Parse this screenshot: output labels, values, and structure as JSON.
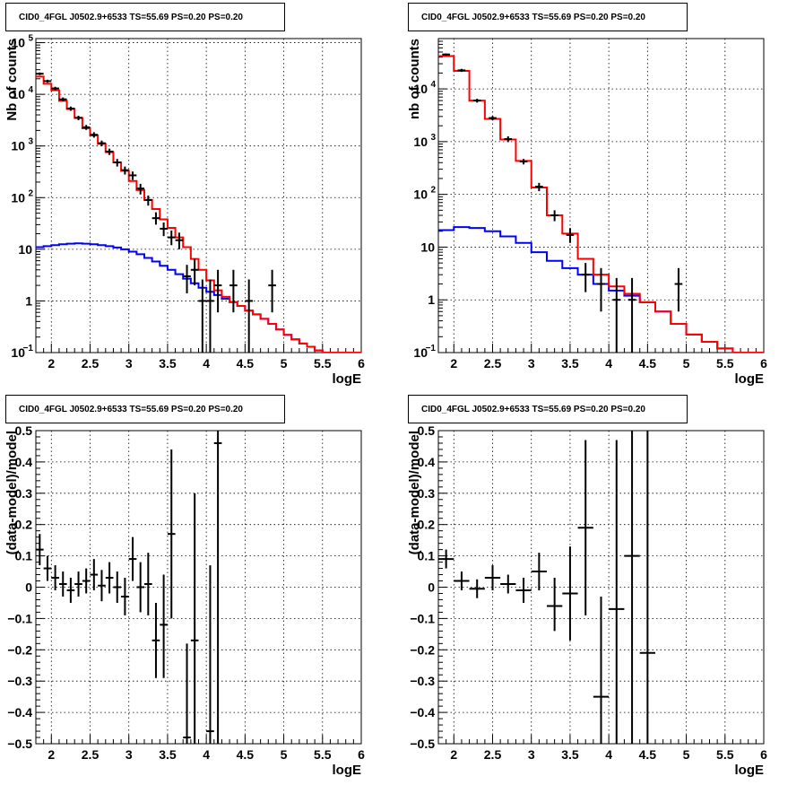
{
  "colors": {
    "data": "#000000",
    "total_model": "#ff0000",
    "background_model": "#0000ff",
    "grid": "#000000"
  },
  "chart_data": [
    {
      "type": "line",
      "subtype": "histogram-log",
      "title": "CID0_4FGL J0502.9+6533 TS=55.69 PS=0.20 PS=0.20",
      "xlabel": "logE",
      "ylabel": "Nb of counts",
      "xlim": [
        1.8,
        6.0
      ],
      "ylim": [
        0.1,
        120000
      ],
      "log_y": true,
      "grid": true,
      "x_ticks": [
        "2",
        "2.5",
        "3",
        "3.5",
        "4",
        "4.5",
        "5",
        "5.5",
        "6"
      ],
      "y_ticks": [
        {
          "v": 0.1,
          "m": "10",
          "e": "−1"
        },
        {
          "v": 1,
          "m": "1",
          "e": ""
        },
        {
          "v": 10,
          "m": "10",
          "e": ""
        },
        {
          "v": 100,
          "m": "10",
          "e": "2"
        },
        {
          "v": 1000,
          "m": "10",
          "e": "3"
        },
        {
          "v": 10000,
          "m": "10",
          "e": "4"
        },
        {
          "v": 100000,
          "m": "10",
          "e": "5"
        }
      ],
      "bin_edges": [
        1.8,
        1.9,
        2.0,
        2.1,
        2.2,
        2.3,
        2.4,
        2.5,
        2.6,
        2.7,
        2.8,
        2.9,
        3.0,
        3.1,
        3.2,
        3.3,
        3.4,
        3.5,
        3.6,
        3.7,
        3.8,
        3.9,
        4.0,
        4.1,
        4.2,
        4.3,
        4.4,
        4.5,
        4.6,
        4.7,
        4.8,
        4.9,
        5.0,
        5.1,
        5.2,
        5.3,
        5.4,
        5.5,
        5.6,
        5.7,
        5.8,
        5.9,
        6.0
      ],
      "series": [
        {
          "name": "total_model",
          "values": [
            22000,
            16000,
            12000,
            7500,
            5200,
            3500,
            2200,
            1600,
            1100,
            760,
            480,
            330,
            210,
            140,
            90,
            60,
            38,
            26,
            17,
            11,
            6.5,
            4,
            2.5,
            1.6,
            1.2,
            0.95,
            0.8,
            0.65,
            0.55,
            0.45,
            0.36,
            0.28,
            0.22,
            0.18,
            0.15,
            0.13,
            0.11,
            0.1,
            0.1,
            0.1,
            0.1,
            0.1
          ]
        },
        {
          "name": "background_model",
          "values": [
            11,
            11.5,
            12,
            12.5,
            12.8,
            13,
            12.8,
            12.5,
            12,
            11.5,
            10.8,
            10,
            9,
            8,
            6.8,
            5.8,
            4.8,
            4,
            3.3,
            2.7,
            2.2,
            1.8,
            1.5,
            1.3,
            1.1,
            0.95,
            0.8,
            0.65,
            0.55,
            0.45,
            0.36,
            0.28,
            0.22,
            0.18,
            0.15,
            0.13,
            0.11,
            0.1,
            0.1,
            0.1,
            0.1,
            0.1
          ]
        }
      ],
      "data_points": [
        {
          "x": 1.85,
          "y": 25000,
          "lo": 23500,
          "hi": 26500
        },
        {
          "x": 1.95,
          "y": 18000,
          "lo": 16800,
          "hi": 19200
        },
        {
          "x": 2.05,
          "y": 13000,
          "lo": 12000,
          "hi": 14000
        },
        {
          "x": 2.15,
          "y": 8000,
          "lo": 7300,
          "hi": 8700
        },
        {
          "x": 2.25,
          "y": 5300,
          "lo": 4800,
          "hi": 5800
        },
        {
          "x": 2.35,
          "y": 3500,
          "lo": 3150,
          "hi": 3850
        },
        {
          "x": 2.45,
          "y": 2300,
          "lo": 2050,
          "hi": 2550
        },
        {
          "x": 2.55,
          "y": 1650,
          "lo": 1450,
          "hi": 1850
        },
        {
          "x": 2.65,
          "y": 1130,
          "lo": 990,
          "hi": 1270
        },
        {
          "x": 2.75,
          "y": 780,
          "lo": 670,
          "hi": 890
        },
        {
          "x": 2.85,
          "y": 480,
          "lo": 400,
          "hi": 560
        },
        {
          "x": 2.95,
          "y": 340,
          "lo": 280,
          "hi": 400
        },
        {
          "x": 3.05,
          "y": 270,
          "lo": 220,
          "hi": 320
        },
        {
          "x": 3.15,
          "y": 150,
          "lo": 115,
          "hi": 185
        },
        {
          "x": 3.25,
          "y": 90,
          "lo": 70,
          "hi": 110
        },
        {
          "x": 3.35,
          "y": 40,
          "lo": 30,
          "hi": 52
        },
        {
          "x": 3.45,
          "y": 25,
          "lo": 18,
          "hi": 33
        },
        {
          "x": 3.55,
          "y": 17,
          "lo": 12,
          "hi": 23
        },
        {
          "x": 3.65,
          "y": 15,
          "lo": 10,
          "hi": 21
        },
        {
          "x": 3.75,
          "y": 3,
          "lo": 1.4,
          "hi": 5
        },
        {
          "x": 3.85,
          "y": 4,
          "lo": 2,
          "hi": 6.5
        },
        {
          "x": 3.95,
          "y": 1,
          "lo": 0.1,
          "hi": 2.6
        },
        {
          "x": 4.05,
          "y": 1,
          "lo": 0.1,
          "hi": 2.6
        },
        {
          "x": 4.15,
          "y": 2,
          "lo": 0.6,
          "hi": 4
        },
        {
          "x": 4.35,
          "y": 2,
          "lo": 0.6,
          "hi": 4
        },
        {
          "x": 4.55,
          "y": 1,
          "lo": 0.1,
          "hi": 2.6
        },
        {
          "x": 4.85,
          "y": 2,
          "lo": 0.6,
          "hi": 4
        }
      ]
    },
    {
      "type": "line",
      "subtype": "histogram-log",
      "title": "CID0_4FGL J0502.9+6533 TS=55.69 PS=0.20 PS=0.20",
      "xlabel": "logE",
      "ylabel": "nb of counts",
      "xlim": [
        1.8,
        6.0
      ],
      "ylim": [
        0.1,
        90000
      ],
      "log_y": true,
      "grid": true,
      "x_ticks": [
        "2",
        "2.5",
        "3",
        "3.5",
        "4",
        "4.5",
        "5",
        "5.5",
        "6"
      ],
      "y_ticks": [
        {
          "v": 0.1,
          "m": "10",
          "e": "−1"
        },
        {
          "v": 1,
          "m": "1",
          "e": ""
        },
        {
          "v": 10,
          "m": "10",
          "e": ""
        },
        {
          "v": 100,
          "m": "10",
          "e": "2"
        },
        {
          "v": 1000,
          "m": "10",
          "e": "3"
        },
        {
          "v": 10000,
          "m": "10",
          "e": "4"
        }
      ],
      "bin_edges": [
        1.8,
        2.0,
        2.2,
        2.4,
        2.6,
        2.8,
        3.0,
        3.2,
        3.4,
        3.6,
        3.8,
        4.0,
        4.2,
        4.4,
        4.6,
        4.8,
        5.0,
        5.2,
        5.4,
        5.6,
        5.8,
        6.0
      ],
      "series": [
        {
          "name": "total_model",
          "values": [
            42000,
            22000,
            6000,
            2700,
            1100,
            430,
            135,
            40,
            18,
            6,
            3,
            1.8,
            1.3,
            0.9,
            0.6,
            0.35,
            0.22,
            0.16,
            0.12,
            0.1,
            0.1
          ]
        },
        {
          "name": "background_model",
          "values": [
            21,
            24,
            23,
            20,
            16,
            12,
            8,
            5.5,
            4,
            3,
            2,
            1.5,
            1.2,
            0.9,
            0.6,
            0.35,
            0.22,
            0.16,
            0.12,
            0.1,
            0.1
          ]
        }
      ],
      "data_points": [
        {
          "x": 1.9,
          "y": 45000,
          "lo": 43000,
          "hi": 47000
        },
        {
          "x": 2.1,
          "y": 22500,
          "lo": 21000,
          "hi": 24000
        },
        {
          "x": 2.3,
          "y": 6000,
          "lo": 5500,
          "hi": 6500
        },
        {
          "x": 2.5,
          "y": 2800,
          "lo": 2550,
          "hi": 3050
        },
        {
          "x": 2.7,
          "y": 1120,
          "lo": 980,
          "hi": 1260
        },
        {
          "x": 2.9,
          "y": 420,
          "lo": 370,
          "hi": 470
        },
        {
          "x": 3.1,
          "y": 140,
          "lo": 115,
          "hi": 165
        },
        {
          "x": 3.3,
          "y": 40,
          "lo": 31,
          "hi": 50
        },
        {
          "x": 3.5,
          "y": 17,
          "lo": 12,
          "hi": 23
        },
        {
          "x": 3.7,
          "y": 3,
          "lo": 1.4,
          "hi": 5
        },
        {
          "x": 3.9,
          "y": 2,
          "lo": 0.6,
          "hi": 4
        },
        {
          "x": 4.1,
          "y": 1,
          "lo": 0.1,
          "hi": 2.6
        },
        {
          "x": 4.3,
          "y": 1,
          "lo": 0.1,
          "hi": 2.6
        },
        {
          "x": 4.9,
          "y": 2,
          "lo": 0.6,
          "hi": 4
        }
      ]
    },
    {
      "type": "scatter",
      "subtype": "residuals",
      "title": "CID0_4FGL J0502.9+6533 TS=55.69 PS=0.20 PS=0.20",
      "xlabel": "logE",
      "ylabel": "(data-model)/model",
      "xlim": [
        1.8,
        6.0
      ],
      "ylim": [
        -0.5,
        0.5
      ],
      "grid": true,
      "x_ticks": [
        "2",
        "2.5",
        "3",
        "3.5",
        "4",
        "4.5",
        "5",
        "5.5",
        "6"
      ],
      "y_ticks": [
        "−0.5",
        "−0.4",
        "−0.3",
        "−0.2",
        "−0.1",
        "0",
        "0.1",
        "0.2",
        "0.3",
        "0.4",
        "0.5"
      ],
      "xerr": 0.05,
      "data_points": [
        {
          "x": 1.85,
          "y": 0.12,
          "lo": 0.07,
          "hi": 0.17
        },
        {
          "x": 1.95,
          "y": 0.06,
          "lo": 0.02,
          "hi": 0.1
        },
        {
          "x": 2.05,
          "y": 0.03,
          "lo": -0.01,
          "hi": 0.07
        },
        {
          "x": 2.15,
          "y": 0.01,
          "lo": -0.03,
          "hi": 0.05
        },
        {
          "x": 2.25,
          "y": -0.01,
          "lo": -0.05,
          "hi": 0.03
        },
        {
          "x": 2.35,
          "y": 0.01,
          "lo": -0.03,
          "hi": 0.05
        },
        {
          "x": 2.45,
          "y": 0.02,
          "lo": -0.02,
          "hi": 0.06
        },
        {
          "x": 2.55,
          "y": 0.04,
          "lo": -0.01,
          "hi": 0.09
        },
        {
          "x": 2.65,
          "y": 0.005,
          "lo": -0.045,
          "hi": 0.055
        },
        {
          "x": 2.75,
          "y": 0.03,
          "lo": -0.02,
          "hi": 0.08
        },
        {
          "x": 2.85,
          "y": 0.0,
          "lo": -0.05,
          "hi": 0.05
        },
        {
          "x": 2.95,
          "y": -0.03,
          "lo": -0.09,
          "hi": 0.03
        },
        {
          "x": 3.05,
          "y": 0.09,
          "lo": 0.02,
          "hi": 0.16
        },
        {
          "x": 3.15,
          "y": 0.0,
          "lo": -0.08,
          "hi": 0.08
        },
        {
          "x": 3.25,
          "y": 0.01,
          "lo": -0.09,
          "hi": 0.11
        },
        {
          "x": 3.35,
          "y": -0.17,
          "lo": -0.29,
          "hi": -0.05
        },
        {
          "x": 3.45,
          "y": -0.12,
          "lo": -0.29,
          "hi": 0.04
        },
        {
          "x": 3.55,
          "y": 0.17,
          "lo": -0.1,
          "hi": 0.44
        },
        {
          "x": 3.75,
          "y": -0.48,
          "lo": -0.5,
          "hi": -0.18
        },
        {
          "x": 3.85,
          "y": -0.17,
          "lo": -0.5,
          "hi": 0.3
        },
        {
          "x": 4.05,
          "y": -0.46,
          "lo": -0.5,
          "hi": 0.07
        },
        {
          "x": 4.15,
          "y": 0.46,
          "lo": -0.5,
          "hi": 0.5
        }
      ]
    },
    {
      "type": "scatter",
      "subtype": "residuals",
      "title": "CID0_4FGL J0502.9+6533 TS=55.69 PS=0.20 PS=0.20",
      "xlabel": "logE",
      "ylabel": "(data-model)/model",
      "xlim": [
        1.8,
        6.0
      ],
      "ylim": [
        -0.5,
        0.5
      ],
      "grid": true,
      "x_ticks": [
        "2",
        "2.5",
        "3",
        "3.5",
        "4",
        "4.5",
        "5",
        "5.5",
        "6"
      ],
      "y_ticks": [
        "−0.5",
        "−0.4",
        "−0.3",
        "−0.2",
        "−0.1",
        "0",
        "0.1",
        "0.2",
        "0.3",
        "0.4",
        "0.5"
      ],
      "xerr": 0.1,
      "data_points": [
        {
          "x": 1.9,
          "y": 0.09,
          "lo": 0.06,
          "hi": 0.12
        },
        {
          "x": 2.1,
          "y": 0.02,
          "lo": -0.01,
          "hi": 0.05
        },
        {
          "x": 2.3,
          "y": -0.005,
          "lo": -0.035,
          "hi": 0.025
        },
        {
          "x": 2.5,
          "y": 0.03,
          "lo": -0.01,
          "hi": 0.07
        },
        {
          "x": 2.7,
          "y": 0.01,
          "lo": -0.02,
          "hi": 0.04
        },
        {
          "x": 2.9,
          "y": -0.01,
          "lo": -0.05,
          "hi": 0.03
        },
        {
          "x": 3.1,
          "y": 0.05,
          "lo": -0.01,
          "hi": 0.11
        },
        {
          "x": 3.3,
          "y": -0.06,
          "lo": -0.14,
          "hi": 0.03
        },
        {
          "x": 3.5,
          "y": -0.02,
          "lo": -0.17,
          "hi": 0.13
        },
        {
          "x": 3.7,
          "y": 0.19,
          "lo": -0.09,
          "hi": 0.47
        },
        {
          "x": 3.9,
          "y": -0.35,
          "lo": -0.5,
          "hi": -0.03
        },
        {
          "x": 4.1,
          "y": -0.07,
          "lo": -0.5,
          "hi": 0.47
        },
        {
          "x": 4.3,
          "y": 0.1,
          "lo": -0.5,
          "hi": 0.5
        },
        {
          "x": 4.5,
          "y": -0.21,
          "lo": -0.5,
          "hi": 0.5
        }
      ]
    }
  ]
}
